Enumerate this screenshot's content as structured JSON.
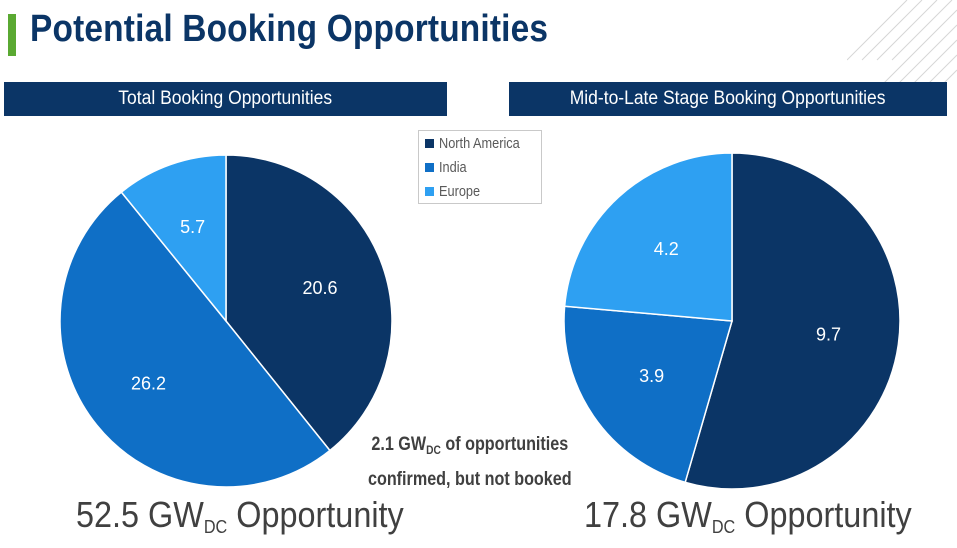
{
  "title": "Potential Booking Opportunities",
  "colors": {
    "accent": "#5aa932",
    "header_bg": "#0b3566",
    "north_america": "#0b3566",
    "india": "#0f6fc6",
    "europe": "#2ea0f2"
  },
  "legend": [
    {
      "label": "North America",
      "color": "#0b3566"
    },
    {
      "label": "India",
      "color": "#0f6fc6"
    },
    {
      "label": "Europe",
      "color": "#2ea0f2"
    }
  ],
  "note": {
    "line1_prefix": "2.1 GW",
    "line1_sub": "DC",
    "line1_suffix": " of opportunities",
    "line2": "confirmed, but not booked"
  },
  "left": {
    "header": "Total Booking Opportunities",
    "total_value": "52.5 GW",
    "total_sub": "DC",
    "total_suffix": " Opportunity"
  },
  "right": {
    "header": "Mid-to-Late Stage Booking Opportunities",
    "total_value": "17.8 GW",
    "total_sub": "DC",
    "total_suffix": " Opportunity"
  },
  "chart_data": [
    {
      "type": "pie",
      "title": "Total Booking Opportunities",
      "categories": [
        "North America",
        "India",
        "Europe"
      ],
      "values": [
        20.6,
        26.2,
        5.7
      ],
      "labels": [
        "20.6",
        "26.2",
        "5.7"
      ],
      "colors": [
        "#0b3566",
        "#0f6fc6",
        "#2ea0f2"
      ],
      "legend": "top-right"
    },
    {
      "type": "pie",
      "title": "Mid-to-Late Stage Booking Opportunities",
      "categories": [
        "North America",
        "India",
        "Europe"
      ],
      "values": [
        9.7,
        3.9,
        4.2
      ],
      "labels": [
        "9.7",
        "3.9",
        "4.2"
      ],
      "colors": [
        "#0b3566",
        "#0f6fc6",
        "#2ea0f2"
      ],
      "legend": "top-left"
    }
  ]
}
